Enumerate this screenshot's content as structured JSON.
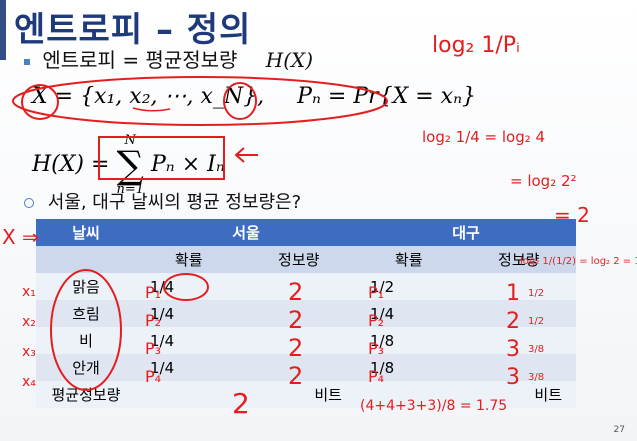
{
  "title": "엔트로피 – 정의",
  "bullets": {
    "definition_prefix": "엔트로피 = 평균정보량",
    "definition_math": "H(X)",
    "set_def": "X = {x₁, x₂, ⋯, x_N},",
    "prob_def": "Pₙ = Pr{X = xₙ}",
    "formula_lhs": "H(X) =",
    "sum_top": "N",
    "sum_bottom": "n=1",
    "sum_term": "Pₙ × Iₙ",
    "question": "서울, 대구 날씨의 평균 정보량은?"
  },
  "table": {
    "headers": [
      "날씨",
      "서울",
      "대구"
    ],
    "subheaders": [
      "",
      "확률",
      "정보량",
      "확률",
      "정보량"
    ],
    "rows": [
      {
        "weather": "맑음",
        "seoul_prob": "1/4",
        "daegu_prob": "1/2"
      },
      {
        "weather": "흐림",
        "seoul_prob": "1/4",
        "daegu_prob": "1/4"
      },
      {
        "weather": "비",
        "seoul_prob": "1/4",
        "daegu_prob": "1/8"
      },
      {
        "weather": "안개",
        "seoul_prob": "1/4",
        "daegu_prob": "1/8"
      }
    ],
    "footer": {
      "label": "평균정보량",
      "seoul_unit": "비트",
      "daegu_unit": "비트"
    }
  },
  "handwriting": {
    "log_note": "log₂ 1/Pᵢ",
    "calc1": "log₂ 1/4 = log₂ 4",
    "calc2": "= log₂ 2²",
    "calc3": "= 2",
    "calc4": "log₂ 1/(1/2) = log₂ 2 = 1",
    "x_arrow": "X ⇒",
    "row_labels": [
      "x₁",
      "x₂",
      "x₃",
      "x₄"
    ],
    "p_labels": [
      "P₁",
      "P₂",
      "P₃",
      "P₄"
    ],
    "seoul_info": [
      "2",
      "2",
      "2",
      "2"
    ],
    "daegu_info": [
      "1",
      "2",
      "3",
      "3"
    ],
    "daegu_weighted": [
      "1/2",
      "1/2",
      "3/8",
      "3/8"
    ],
    "seoul_avg": "2",
    "daegu_avg": "(4+4+3+3)/8 = 1.75"
  },
  "page_number": "27",
  "colors": {
    "title": "#1f3a7a",
    "table_header": "#3d6cc0",
    "ink": "#e41e1e"
  }
}
